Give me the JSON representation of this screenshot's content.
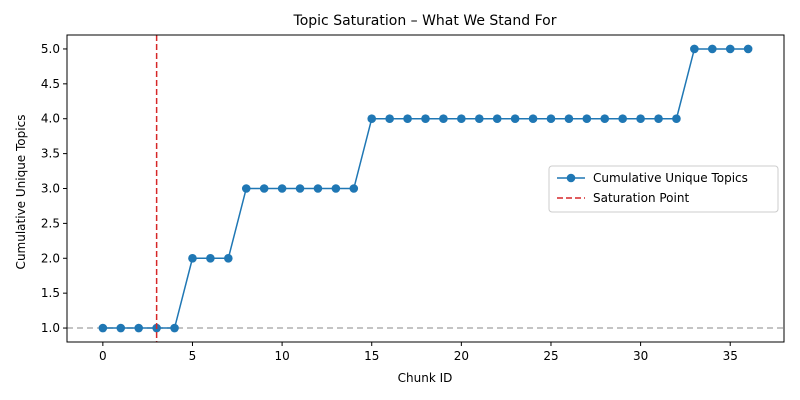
{
  "chart_data": {
    "type": "line",
    "title": "Topic Saturation – What We Stand For",
    "xlabel": "Chunk ID",
    "ylabel": "Cumulative Unique Topics",
    "xlim": [
      -2,
      38
    ],
    "ylim": [
      0.8,
      5.2
    ],
    "xticks": [
      0,
      5,
      10,
      15,
      20,
      25,
      30,
      35
    ],
    "yticks": [
      1.0,
      1.5,
      2.0,
      2.5,
      3.0,
      3.5,
      4.0,
      4.5,
      5.0
    ],
    "grid": false,
    "legend_position": "center-right",
    "x": [
      0,
      1,
      2,
      3,
      4,
      5,
      6,
      7,
      8,
      9,
      10,
      11,
      12,
      13,
      14,
      15,
      16,
      17,
      18,
      19,
      20,
      21,
      22,
      23,
      24,
      25,
      26,
      27,
      28,
      29,
      30,
      31,
      32,
      33,
      34,
      35,
      36
    ],
    "series": [
      {
        "name": "Cumulative Unique Topics",
        "color": "#1f77b4",
        "marker": "circle",
        "values": [
          1,
          1,
          1,
          1,
          1,
          2,
          2,
          2,
          3,
          3,
          3,
          3,
          3,
          3,
          3,
          4,
          4,
          4,
          4,
          4,
          4,
          4,
          4,
          4,
          4,
          4,
          4,
          4,
          4,
          4,
          4,
          4,
          4,
          5,
          5,
          5,
          5
        ]
      }
    ],
    "annotations": [
      {
        "type": "vline",
        "x": 3,
        "name": "Saturation Point",
        "color": "#d62728",
        "style": "dashed"
      },
      {
        "type": "hline",
        "y": 1.0,
        "color": "#b0b0b0",
        "style": "dashed"
      }
    ]
  }
}
